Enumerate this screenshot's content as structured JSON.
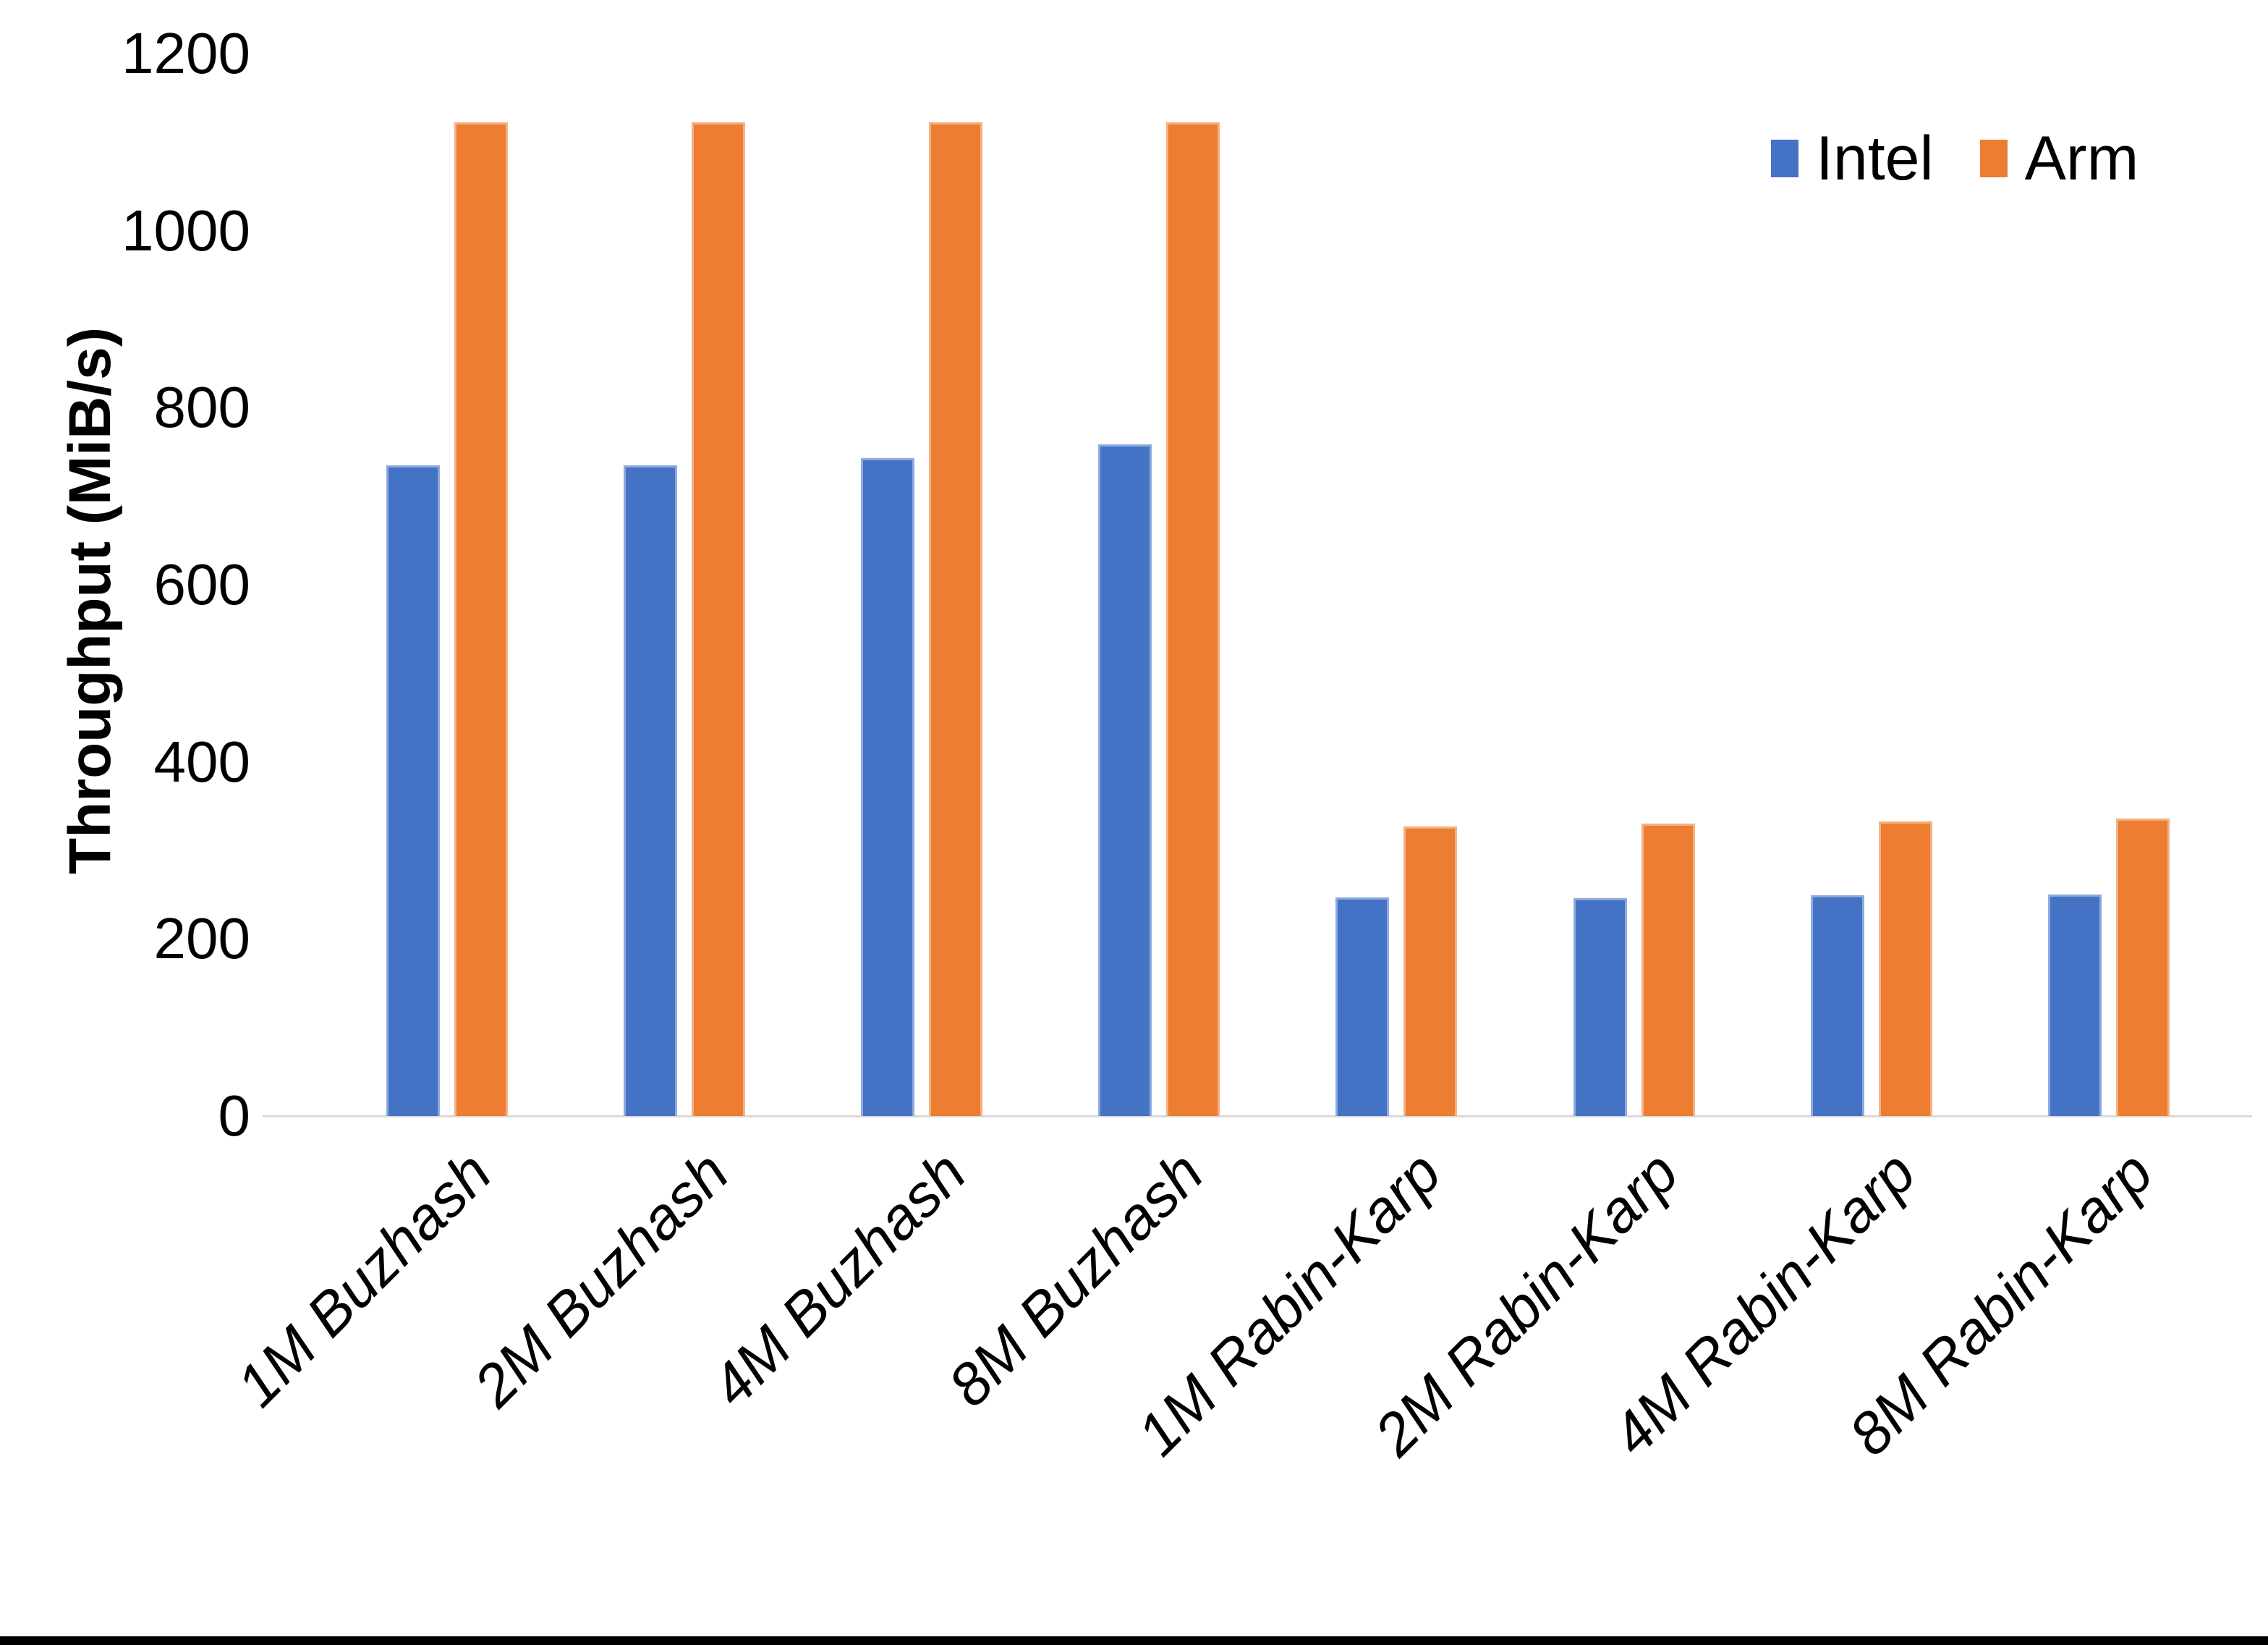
{
  "chart_data": {
    "type": "bar",
    "title": "",
    "xlabel": "",
    "ylabel": "Throughput (MiB/s)",
    "categories": [
      "1M Buzhash",
      "2M Buzhash",
      "4M Buzhash",
      "8M Buzhash",
      "1M Rabin-Karp",
      "2M Rabin-Karp",
      "4M Rabin-Karp",
      "8M Rabin-Karp"
    ],
    "series": [
      {
        "name": "Intel",
        "color": "#4472C4",
        "edge_color": "#8faadc",
        "values": [
          735,
          735,
          743,
          759,
          247,
          246,
          249,
          250
        ]
      },
      {
        "name": "Arm",
        "color": "#ED7D31",
        "edge_color": "#f4b183",
        "values": [
          1122,
          1122,
          1122,
          1122,
          327,
          330,
          333,
          336
        ]
      }
    ],
    "ylim": [
      0,
      1200
    ],
    "yticks": [
      0,
      200,
      400,
      600,
      800,
      1000,
      1200
    ],
    "grid": false,
    "legend_position": "top-right",
    "axis_line_color": "#D9D9D9",
    "bottom_edge_color": "#000000"
  }
}
